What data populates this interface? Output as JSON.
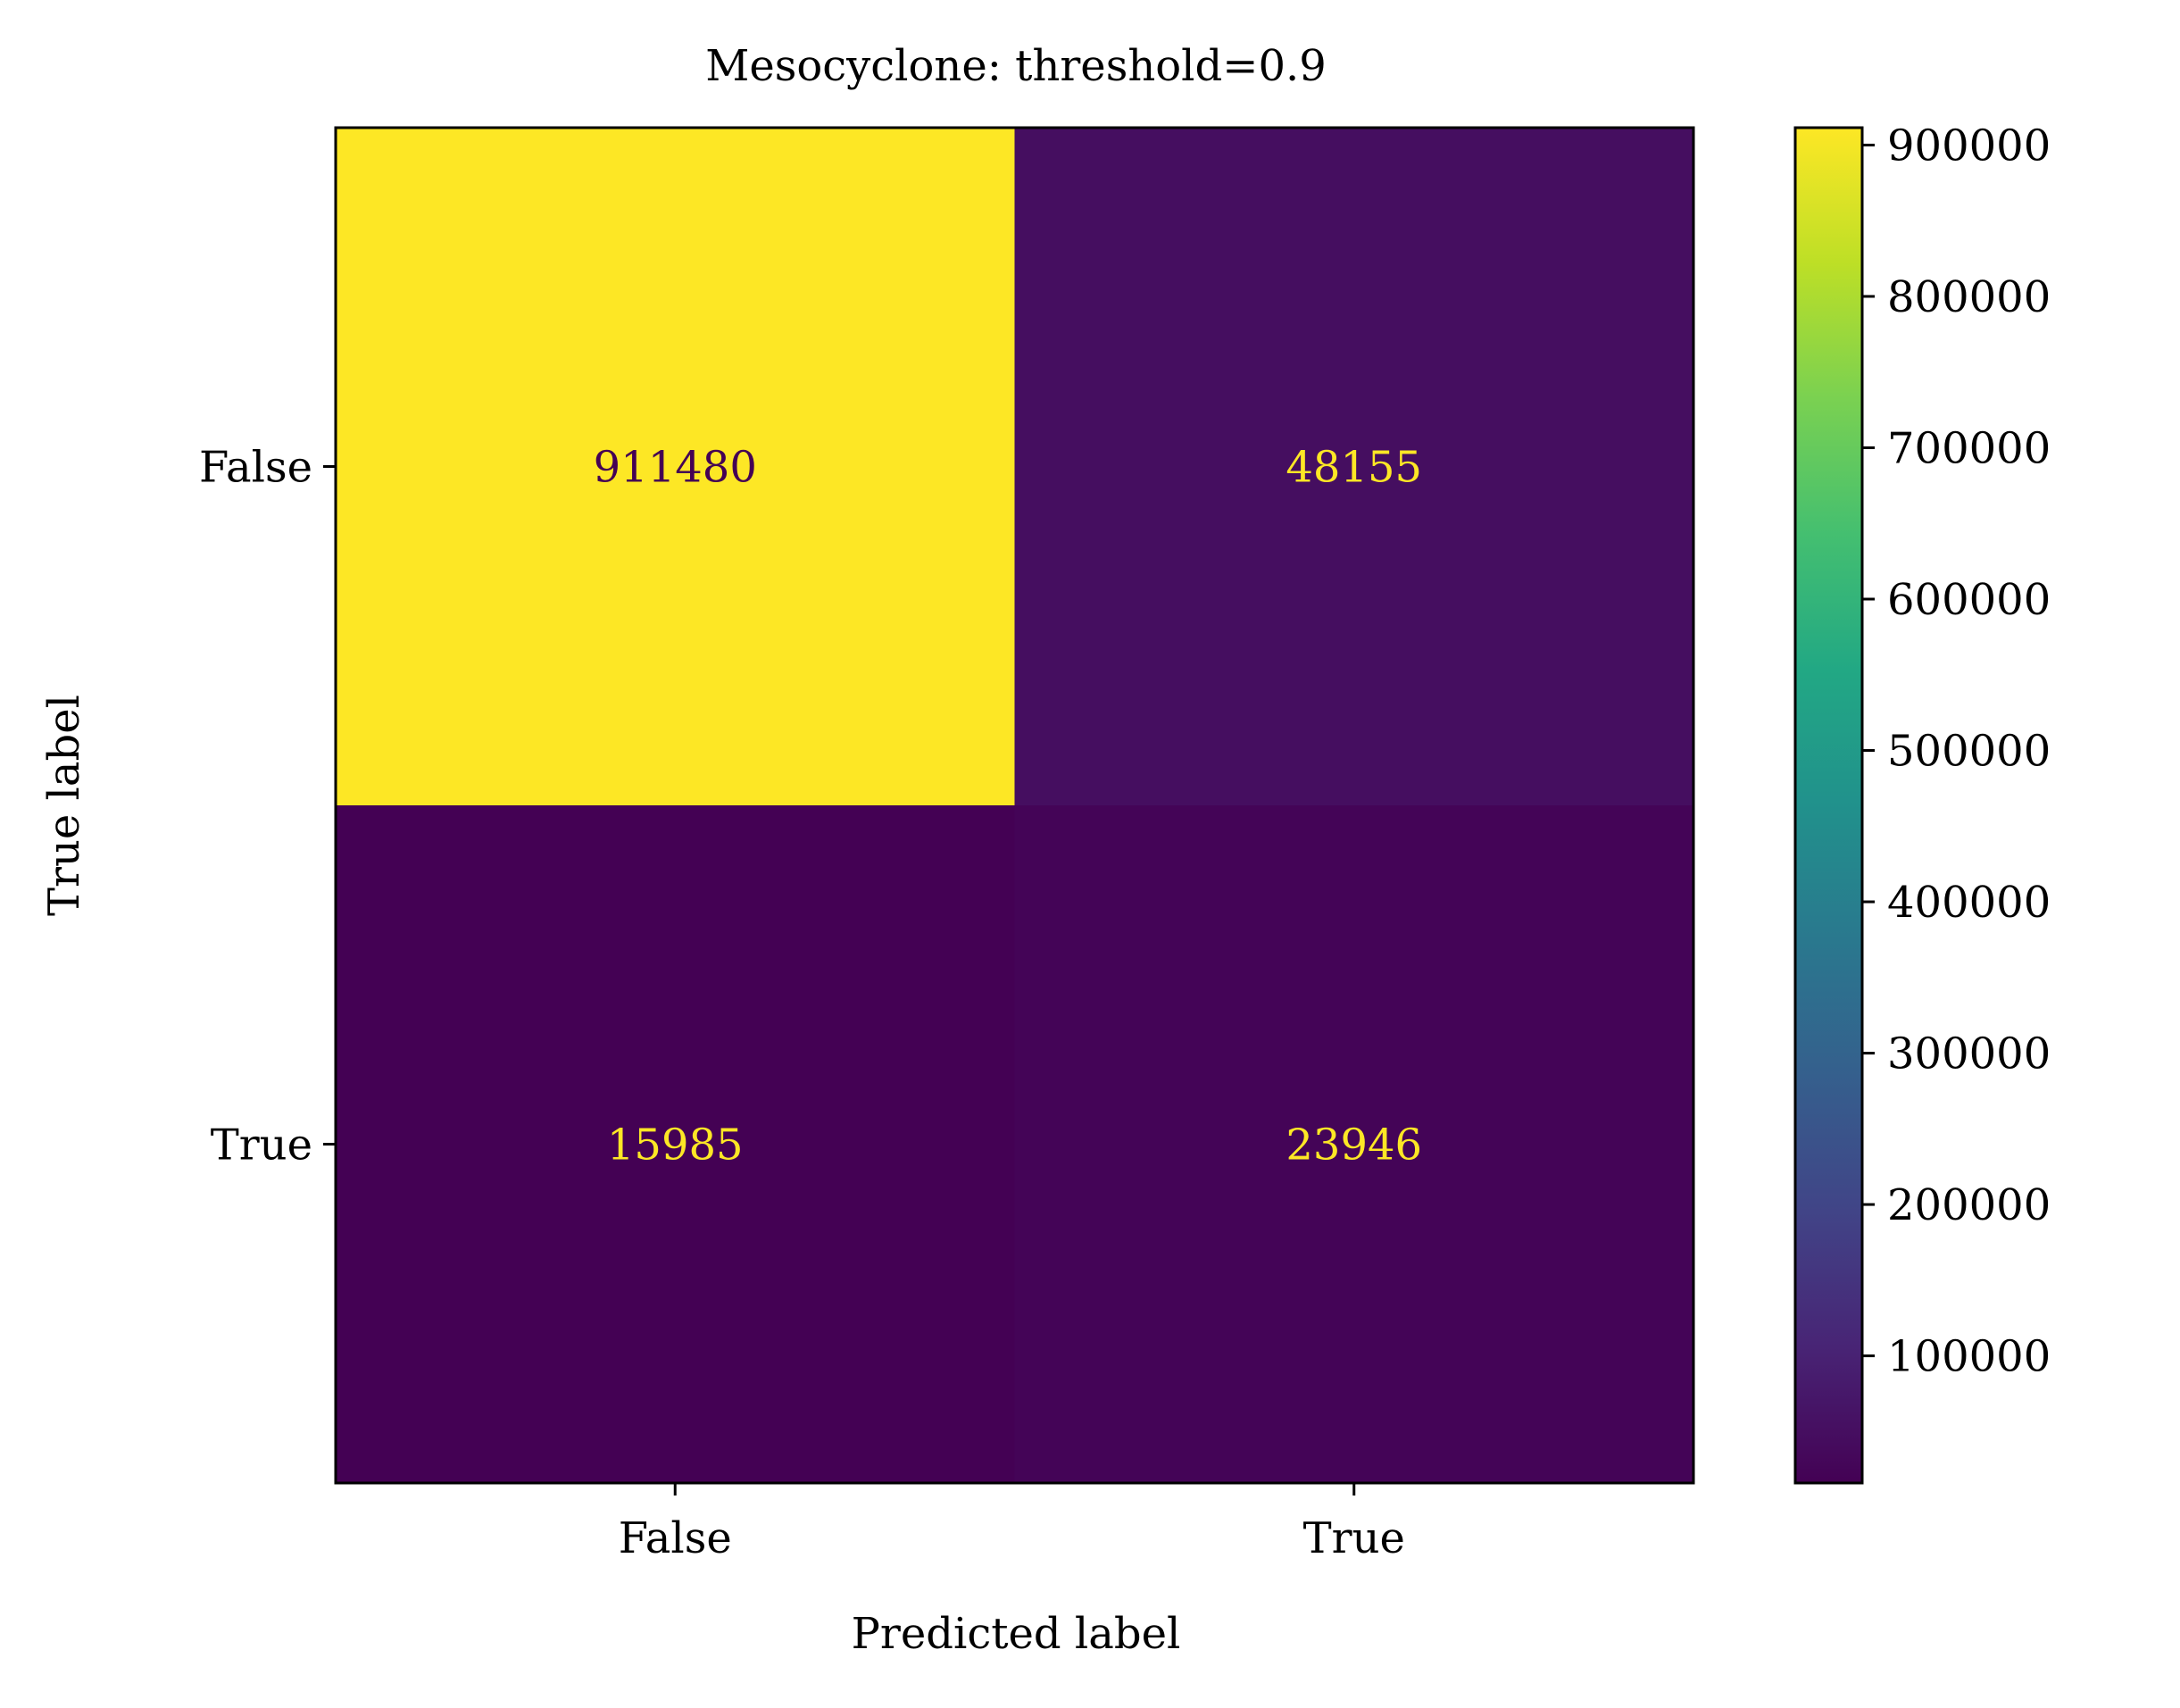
{
  "chart_data": {
    "type": "heatmap",
    "title": "Mesocyclone: threshold=0.9",
    "xlabel": "Predicted label",
    "ylabel": "True label",
    "x_categories": [
      "False",
      "True"
    ],
    "y_categories": [
      "False",
      "True"
    ],
    "matrix": [
      [
        911480,
        48155
      ],
      [
        15985,
        23946
      ]
    ],
    "colormap": "viridis",
    "colorbar": {
      "vmin": 15985,
      "vmax": 911480,
      "ticks": [
        100000,
        200000,
        300000,
        400000,
        500000,
        600000,
        700000,
        800000,
        900000
      ],
      "tick_labels": [
        "100000",
        "200000",
        "300000",
        "400000",
        "500000",
        "600000",
        "700000",
        "800000",
        "900000"
      ]
    },
    "cell_text_colors": {
      "on_dark": "#fde725",
      "on_light": "#440154"
    },
    "grid": false,
    "legend": "colorbar-right"
  }
}
